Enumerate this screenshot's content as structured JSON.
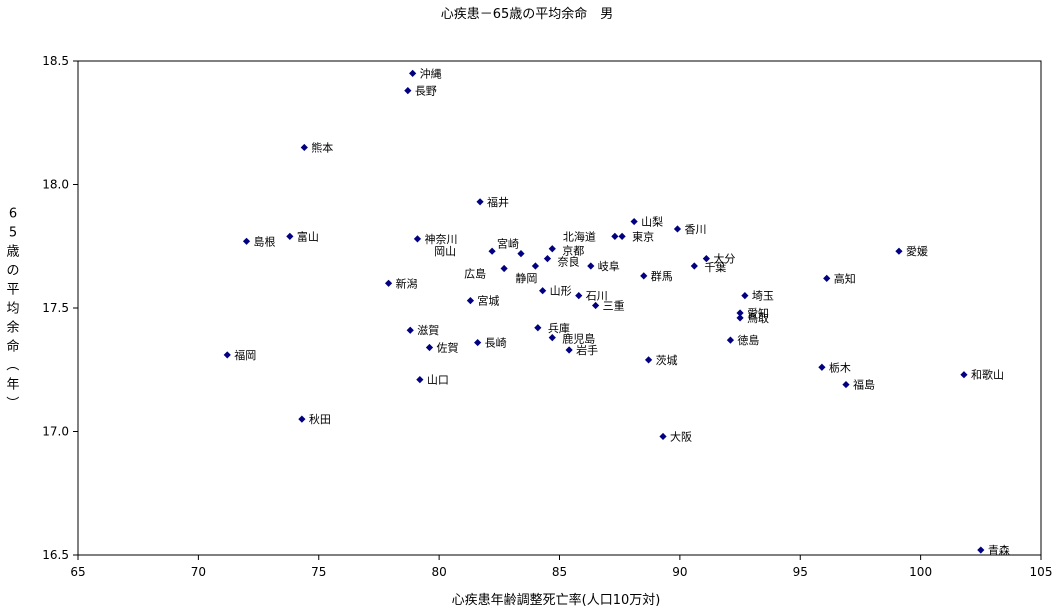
{
  "chart_data": {
    "type": "scatter",
    "title": "心疾患－65歳の平均余命　男",
    "xlabel": "心疾患年齢調整死亡率(人口10万対)",
    "ylabel": "65歳の平均余命（年）",
    "xlim": [
      65,
      105
    ],
    "ylim": [
      16.5,
      18.5
    ],
    "xticks": [
      "65",
      "70",
      "75",
      "80",
      "85",
      "90",
      "95",
      "100",
      "105"
    ],
    "yticks": [
      "16.5",
      "17.0",
      "17.5",
      "18.0",
      "18.5"
    ],
    "marker_color": "#000080",
    "grid": false,
    "points": [
      {
        "label": "沖縄",
        "x": 78.9,
        "y": 18.45
      },
      {
        "label": "長野",
        "x": 78.7,
        "y": 18.38
      },
      {
        "label": "熊本",
        "x": 74.4,
        "y": 18.15
      },
      {
        "label": "福井",
        "x": 81.7,
        "y": 17.93
      },
      {
        "label": "山梨",
        "x": 88.1,
        "y": 17.85
      },
      {
        "label": "香川",
        "x": 89.9,
        "y": 17.82
      },
      {
        "label": "富山",
        "x": 73.8,
        "y": 17.79
      },
      {
        "label": "島根",
        "x": 72.0,
        "y": 17.77
      },
      {
        "label": "神奈川",
        "x": 79.1,
        "y": 17.78
      },
      {
        "label": "北海道",
        "x": 87.3,
        "y": 17.79
      },
      {
        "label": "東京",
        "x": 87.6,
        "y": 17.79
      },
      {
        "label": "宮崎",
        "x": 83.4,
        "y": 17.72
      },
      {
        "label": "岡山",
        "x": 82.2,
        "y": 17.73
      },
      {
        "label": "京都",
        "x": 84.7,
        "y": 17.74
      },
      {
        "label": "奈良",
        "x": 84.5,
        "y": 17.7
      },
      {
        "label": "愛媛",
        "x": 99.1,
        "y": 17.73
      },
      {
        "label": "大分",
        "x": 91.1,
        "y": 17.7
      },
      {
        "label": "千葉",
        "x": 90.6,
        "y": 17.67
      },
      {
        "label": "広島",
        "x": 82.7,
        "y": 17.66
      },
      {
        "label": "静岡",
        "x": 84.0,
        "y": 17.67
      },
      {
        "label": "岐阜",
        "x": 86.3,
        "y": 17.67
      },
      {
        "label": "群馬",
        "x": 88.5,
        "y": 17.63
      },
      {
        "label": "高知",
        "x": 96.1,
        "y": 17.62
      },
      {
        "label": "新潟",
        "x": 77.9,
        "y": 17.6
      },
      {
        "label": "山形",
        "x": 84.3,
        "y": 17.57
      },
      {
        "label": "石川",
        "x": 85.8,
        "y": 17.55
      },
      {
        "label": "宮城",
        "x": 81.3,
        "y": 17.53
      },
      {
        "label": "三重",
        "x": 86.5,
        "y": 17.51
      },
      {
        "label": "埼玉",
        "x": 92.7,
        "y": 17.55
      },
      {
        "label": "愛知",
        "x": 92.5,
        "y": 17.48
      },
      {
        "label": "鳥取",
        "x": 92.5,
        "y": 17.46
      },
      {
        "label": "兵庫",
        "x": 84.1,
        "y": 17.42
      },
      {
        "label": "滋賀",
        "x": 78.8,
        "y": 17.41
      },
      {
        "label": "鹿児島",
        "x": 84.7,
        "y": 17.38
      },
      {
        "label": "長崎",
        "x": 81.6,
        "y": 17.36
      },
      {
        "label": "佐賀",
        "x": 79.6,
        "y": 17.34
      },
      {
        "label": "岩手",
        "x": 85.4,
        "y": 17.33
      },
      {
        "label": "徳島",
        "x": 92.1,
        "y": 17.37
      },
      {
        "label": "福岡",
        "x": 71.2,
        "y": 17.31
      },
      {
        "label": "茨城",
        "x": 88.7,
        "y": 17.29
      },
      {
        "label": "栃木",
        "x": 95.9,
        "y": 17.26
      },
      {
        "label": "和歌山",
        "x": 101.8,
        "y": 17.23
      },
      {
        "label": "福島",
        "x": 96.9,
        "y": 17.19
      },
      {
        "label": "山口",
        "x": 79.2,
        "y": 17.21
      },
      {
        "label": "秋田",
        "x": 74.3,
        "y": 17.05
      },
      {
        "label": "大阪",
        "x": 89.3,
        "y": 16.98
      },
      {
        "label": "青森",
        "x": 102.5,
        "y": 16.52
      }
    ]
  }
}
